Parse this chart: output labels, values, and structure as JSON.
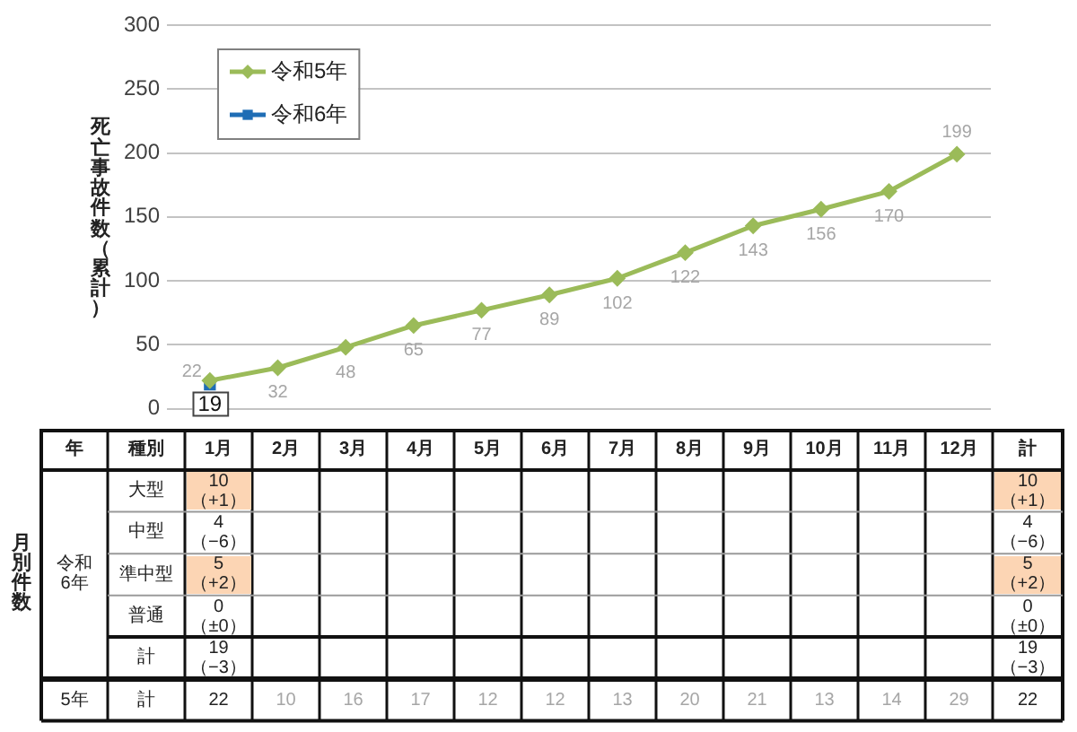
{
  "chart_data": [
    {
      "type": "line",
      "categories": [
        null,
        null,
        null,
        null,
        null,
        null,
        null,
        null,
        null,
        null,
        null,
        null
      ],
      "series": [
        {
          "name": "令和5年",
          "color": "#9bbb59",
          "marker": "diamond",
          "values": [
            22,
            32,
            48,
            65,
            77,
            89,
            102,
            122,
            143,
            156,
            170,
            199
          ]
        },
        {
          "name": "令和6年",
          "color": "#1f6db5",
          "marker": "square",
          "values": [
            19,
            null,
            null,
            null,
            null,
            null,
            null,
            null,
            null,
            null,
            null,
            null
          ]
        }
      ],
      "ylabel": "死亡事故件数（累計）",
      "ylim": [
        0,
        300
      ],
      "yticks": [
        0,
        50,
        100,
        150,
        200,
        250,
        300
      ],
      "grid": "y",
      "legend": "top left",
      "tick_labels": "y",
      "data_labels": true
    },
    {
      "type": "heatmap",
      "title": "月別件数",
      "y2label": "年",
      "ylabel": "種別",
      "grid": true,
      "data_labels": true,
      "categories": [
        "1月",
        "2月",
        "3月",
        "4月",
        "5月",
        "6月",
        "7月",
        "8月",
        "9月",
        "10月",
        "11月",
        "12月",
        "計"
      ],
      "y_categories": [
        "大型",
        "中型",
        "準中型",
        "普通",
        "計",
        "計"
      ],
      "y2_categories": [
        null,
        null,
        "令和\n6年",
        null,
        null,
        "5年"
      ],
      "cells": [
        [
          10,
          null,
          null,
          null,
          null,
          null,
          null,
          null,
          null,
          null,
          null,
          null,
          10
        ],
        [
          4,
          null,
          null,
          null,
          null,
          null,
          null,
          null,
          null,
          null,
          null,
          null,
          4
        ],
        [
          5,
          null,
          null,
          null,
          null,
          null,
          null,
          null,
          null,
          null,
          null,
          null,
          5
        ],
        [
          0,
          null,
          null,
          null,
          null,
          null,
          null,
          null,
          null,
          null,
          null,
          null,
          0
        ],
        [
          19,
          null,
          null,
          null,
          null,
          null,
          null,
          null,
          null,
          null,
          null,
          null,
          19
        ],
        [
          22,
          10,
          16,
          17,
          12,
          12,
          13,
          20,
          21,
          13,
          14,
          29,
          22
        ]
      ],
      "colors": [
        [
          "#fcd5b4",
          null,
          null,
          null,
          null,
          null,
          null,
          null,
          null,
          null,
          null,
          null,
          "#fcd5b4"
        ],
        [
          null,
          null,
          null,
          null,
          null,
          null,
          null,
          null,
          null,
          null,
          null,
          null,
          null
        ],
        [
          "#fcd5b4",
          null,
          null,
          null,
          null,
          null,
          null,
          null,
          null,
          null,
          null,
          null,
          "#fcd5b4"
        ],
        [
          null,
          null,
          null,
          null,
          null,
          null,
          null,
          null,
          null,
          null,
          null,
          null,
          null
        ],
        [
          null,
          null,
          null,
          null,
          null,
          null,
          null,
          null,
          null,
          null,
          null,
          null,
          null
        ],
        [
          null,
          null,
          null,
          null,
          null,
          null,
          null,
          null,
          null,
          null,
          null,
          null,
          null
        ]
      ],
      "annotations": [
        "（+1）",
        "（+1）",
        "（−6）",
        "（−6）",
        "（+2）",
        "（+2）",
        "（±0）",
        "（±0）",
        "（−3）",
        "（−3）"
      ]
    }
  ]
}
